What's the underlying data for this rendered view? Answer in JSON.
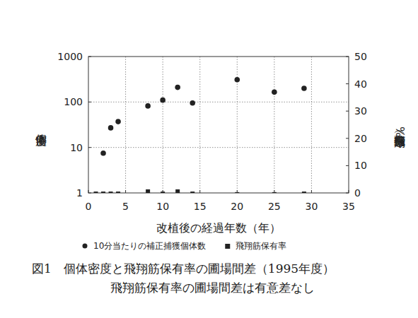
{
  "chart_data": {
    "type": "scatter",
    "title": "図1　個体密度と飛翔筋保有率の圃場間差（1995年度）",
    "subtitle": "飛翔筋保有率の圃場間差は有意差なし",
    "x_label": "改植後の経過年数（年）",
    "y_label": "個体密度",
    "y2_label": "飛翔筋保有率（%）",
    "log": "y",
    "grid": true,
    "xlim": [
      0,
      35
    ],
    "xticks": [
      0,
      5,
      10,
      15,
      20,
      25,
      30,
      35
    ],
    "ylim": [
      1,
      1000
    ],
    "yticks": [
      1,
      10,
      100,
      1000
    ],
    "y2lim": [
      0,
      50
    ],
    "y2ticks": [
      0,
      10,
      20,
      30,
      40,
      50
    ],
    "series": [
      {
        "name": "10分当たりの補正捕獲個体数",
        "type": "scatter",
        "marker": "circle",
        "color": "#222222",
        "x": [
          2,
          3,
          4,
          8,
          10,
          12,
          14,
          20,
          25,
          29
        ],
        "values": [
          7.5,
          27,
          37,
          82,
          110,
          210,
          95,
          310,
          165,
          200
        ]
      },
      {
        "name": "飛翔筋保有率",
        "type": "bar",
        "marker": "square",
        "color": "#222222",
        "axis": "y2",
        "x": [
          1,
          2,
          3,
          4,
          8,
          10,
          12,
          14,
          20,
          25,
          29
        ],
        "values": [
          0.5,
          0.5,
          0.5,
          0.5,
          1.3,
          0.5,
          1.3,
          0.5,
          0.3,
          0.3,
          0.5
        ]
      }
    ]
  }
}
